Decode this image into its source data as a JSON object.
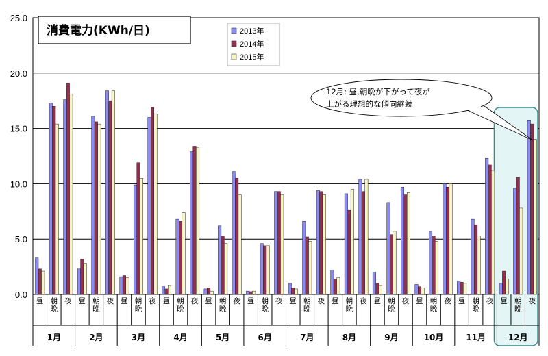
{
  "chart_data": {
    "type": "bar",
    "title": "消費電力(KWh/日)",
    "ylim": [
      0,
      25
    ],
    "yticks": [
      "0.0",
      "5.0",
      "10.0",
      "15.0",
      "20.0",
      "25.0"
    ],
    "grid": true,
    "legend_position": "top-center",
    "months": [
      "1月",
      "2月",
      "3月",
      "4月",
      "5月",
      "6月",
      "7月",
      "8月",
      "9月",
      "10月",
      "11月",
      "12月"
    ],
    "periods": [
      "昼",
      "朝晩",
      "夜"
    ],
    "series": [
      {
        "name": "2013年",
        "color": "#8c8cf0",
        "values": [
          3.3,
          17.3,
          17.6,
          2.3,
          16.1,
          18.4,
          1.6,
          9.9,
          16.0,
          0.7,
          6.8,
          12.9,
          0.5,
          6.2,
          11.1,
          0.3,
          4.6,
          9.3,
          1.0,
          6.6,
          9.4,
          2.2,
          9.1,
          10.4,
          2.0,
          8.3,
          9.7,
          0.9,
          5.7,
          10.0,
          1.2,
          6.8,
          12.3,
          1.0,
          9.6,
          15.7
        ]
      },
      {
        "name": "2014年",
        "color": "#903050",
        "values": [
          2.3,
          17.0,
          19.1,
          3.2,
          15.6,
          17.5,
          1.7,
          11.9,
          16.9,
          0.5,
          6.6,
          13.4,
          0.6,
          5.3,
          10.5,
          0.25,
          4.4,
          9.3,
          0.6,
          5.2,
          9.3,
          1.4,
          7.6,
          9.3,
          1.0,
          5.4,
          9.0,
          0.7,
          5.3,
          9.7,
          1.1,
          6.3,
          11.7,
          2.1,
          10.6,
          15.4
        ]
      },
      {
        "name": "2015年",
        "color": "#f8f4c4",
        "values": [
          2.1,
          15.4,
          18.1,
          2.8,
          15.4,
          18.4,
          1.5,
          10.5,
          16.3,
          0.8,
          7.4,
          13.3,
          0.3,
          4.6,
          9.0,
          0.3,
          4.4,
          9.0,
          0.5,
          4.8,
          9.0,
          1.5,
          9.5,
          10.4,
          0.8,
          5.7,
          9.2,
          0.6,
          4.8,
          10.0,
          1.0,
          5.3,
          11.2,
          1.4,
          7.8,
          14.0
        ]
      }
    ],
    "annotation_lines": [
      "12月:  昼,朝晩が下がって夜が",
      "上がる理想的な傾向継続"
    ]
  }
}
